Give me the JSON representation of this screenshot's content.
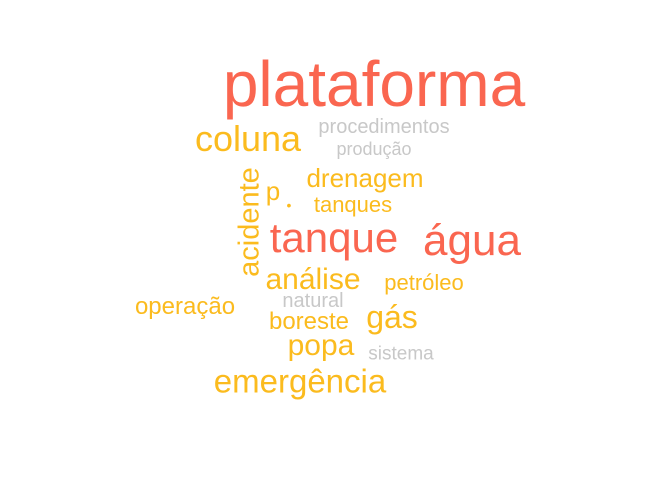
{
  "words": {
    "plataforma": "plataforma",
    "coluna": "coluna",
    "procedimentos": "procedimentos",
    "producao": "produção",
    "drenagem": "drenagem",
    "p": "p",
    "dot": "•",
    "tanques": "tanques",
    "acidente": "acidente",
    "tanque": "tanque",
    "agua": "água",
    "analise": "análise",
    "petroleo": "petróleo",
    "natural": "natural",
    "operacao": "operação",
    "boreste": "boreste",
    "gas": "gás",
    "popa": "popa",
    "sistema": "sistema",
    "emergencia": "emergência"
  },
  "colors": {
    "high": "#fa6650",
    "mid": "#fbbb1e",
    "low": "#c8c8c8"
  }
}
